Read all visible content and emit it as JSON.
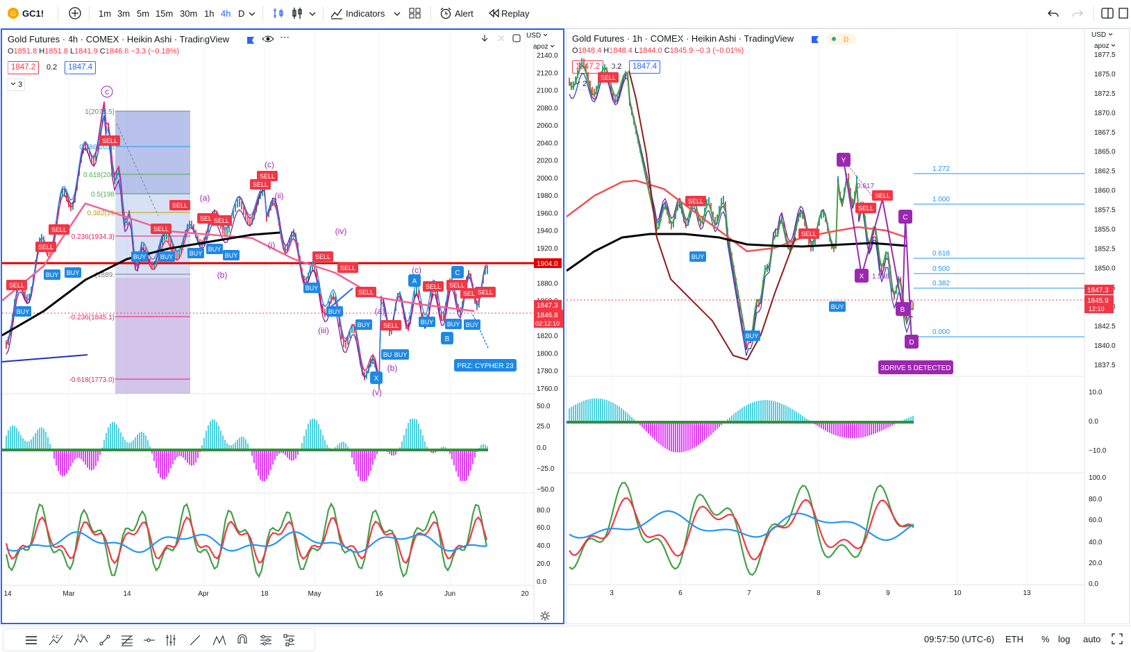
{
  "toolbar": {
    "symbol": "GC1!",
    "intervals": [
      "1m",
      "3m",
      "5m",
      "15m",
      "30m",
      "1h",
      "4h",
      "D"
    ],
    "active_interval": "4h",
    "indicators_label": "Indicators",
    "alert_label": "Alert",
    "replay_label": "Replay"
  },
  "left_chart": {
    "title": "Gold Futures · 4h · COMEX · Heikin Ashi · TradingView",
    "ohlc": {
      "o": "1851.8",
      "h": "1851.8",
      "l": "1841.9",
      "c": "1846.8",
      "chg": "−3.3 (−0.18%)"
    },
    "bid": "1847.2",
    "spread": "0.2",
    "ask": "1847.4",
    "legend_count": "3",
    "currency": "USD",
    "scale_mode": "apoz",
    "price_axis": [
      "2140.0",
      "2120.0",
      "2100.0",
      "2080.0",
      "2060.0",
      "2040.0",
      "2020.0",
      "2000.0",
      "1980.0",
      "1960.0",
      "1940.0",
      "1920.0",
      "1900.0",
      "1880.0",
      "1860.0",
      "1840.0",
      "1820.0",
      "1800.0",
      "1780.0",
      "1760.0"
    ],
    "osc1_axis": [
      "50.0",
      "25.0",
      "0.0",
      "−25.0",
      "−50.0"
    ],
    "osc2_axis": [
      "80.0",
      "60.0",
      "40.0",
      "20.0",
      "0.0"
    ],
    "time_axis": [
      "14",
      "Mar",
      "14",
      "Apr",
      "18",
      "May",
      "16",
      "Jun",
      "20"
    ],
    "red_line_price": "1904.0",
    "current_price": "1847.3",
    "current_price2": "1846.8",
    "countdown": "02:12:10",
    "fib": [
      {
        "label": "1(2078.5)"
      },
      {
        "label": "0.786(2038"
      },
      {
        "label": "0.618(200"
      },
      {
        "label": "0.5(198"
      },
      {
        "label": "0.382(19"
      },
      {
        "label": "0.236(1934.3)"
      },
      {
        "label": "(1889."
      },
      {
        "label": "-0.236(1845.1)"
      },
      {
        "label": "-0.618(1773.0)"
      }
    ],
    "waves": [
      "c",
      "(c)",
      "(a)",
      "(b)",
      "(ii)",
      "(i)",
      "(iv)",
      "(iii)",
      "(a)",
      "(b)",
      "(c)",
      "(v)"
    ],
    "pattern_points": [
      "X",
      "A",
      "B",
      "C"
    ],
    "prz_label": "PRZ: CYPHER 23",
    "signal_sell": "SELL",
    "signal_buy": "BUY"
  },
  "right_chart": {
    "title": "Gold Futures · 1h · COMEX · Heikin Ashi · TradingView",
    "ohlc": {
      "o": "1848.4",
      "h": "1848.4",
      "l": "1844.0",
      "c": "1845.9",
      "chg": "−0.3 (−0.01%)"
    },
    "bid": "1847.2",
    "spread": "0.2",
    "ask": "1847.4",
    "legend_count": "2",
    "currency": "USD",
    "scale_mode": "apoz",
    "price_axis": [
      "1877.5",
      "1875.0",
      "1872.5",
      "1870.0",
      "1867.5",
      "1865.0",
      "1862.5",
      "1860.0",
      "1857.5",
      "1855.0",
      "1852.5",
      "1850.0",
      "1847.5",
      "1845.0",
      "1842.5",
      "1840.0",
      "1837.5"
    ],
    "osc1_axis": [
      "10.0",
      "0.0",
      "−10.0"
    ],
    "osc2_axis": [
      "100.0",
      "80.0",
      "60.0",
      "40.0",
      "20.0",
      "0.0"
    ],
    "time_axis": [
      "3",
      "6",
      "7",
      "8",
      "9",
      "10",
      "13"
    ],
    "fib": [
      "1.272",
      "1.000",
      "0.618",
      "0.500",
      "0.382",
      "0.000"
    ],
    "current_price": "1847.3",
    "current_price2": "1845.9",
    "countdown": "12:10",
    "pattern_points": [
      "Y",
      "X",
      "C",
      "B",
      "D"
    ],
    "ratios": [
      "0.617",
      "1.568"
    ],
    "detect_label": "3DRIVE 5 DETECTED"
  },
  "status": {
    "time": "09:57:50 (UTC-6)",
    "session": "ETH",
    "percent": "%",
    "log": "log",
    "auto": "auto"
  }
}
